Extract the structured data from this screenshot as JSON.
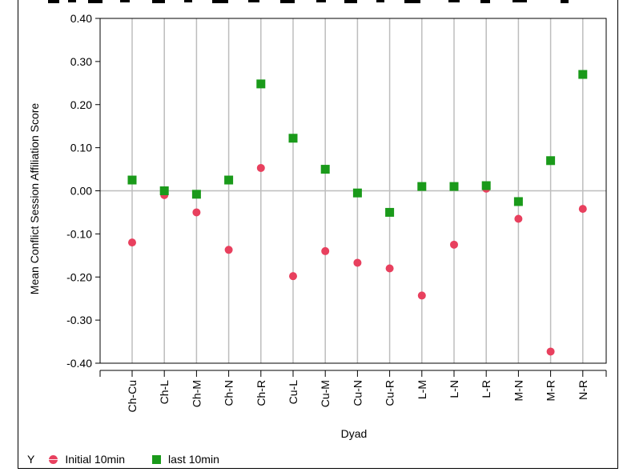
{
  "colors": {
    "series_initial": "#e8405e",
    "series_last": "#1a9a1a",
    "grid": "#bdbdbd",
    "axis": "#000000"
  },
  "legend": {
    "group_label": "Y",
    "position": "bottom-left"
  },
  "chart_data": {
    "type": "scatter",
    "categories": [
      "Ch-Cu",
      "Ch-L",
      "Ch-M",
      "Ch-N",
      "Ch-R",
      "Cu-L",
      "Cu-M",
      "Cu-N",
      "Cu-R",
      "L-M",
      "L-N",
      "L-R",
      "M-N",
      "M-R",
      "N-R"
    ],
    "series": [
      {
        "name": "Initial 10min",
        "marker": "circle",
        "color": "#e8405e",
        "values": [
          -0.12,
          -0.01,
          -0.05,
          -0.137,
          0.053,
          -0.198,
          -0.14,
          -0.167,
          -0.18,
          -0.243,
          -0.125,
          0.005,
          -0.065,
          -0.373,
          -0.042
        ]
      },
      {
        "name": "last 10min",
        "marker": "square",
        "color": "#1a9a1a",
        "values": [
          0.025,
          0.0,
          -0.008,
          0.025,
          0.248,
          0.122,
          0.05,
          -0.005,
          -0.05,
          0.01,
          0.01,
          0.012,
          -0.025,
          0.07,
          0.27
        ]
      }
    ],
    "xlabel": "Dyad",
    "ylabel": "Mean Conflict Session Affiliation Score",
    "ylim": [
      -0.4,
      0.4
    ],
    "yticks": [
      "-0.40",
      "-0.30",
      "-0.20",
      "-0.10",
      "0.00",
      "0.10",
      "0.20",
      "0.30",
      "0.40"
    ],
    "ytick_values": [
      -0.4,
      -0.3,
      -0.2,
      -0.1,
      0.0,
      0.1,
      0.2,
      0.3,
      0.4
    ],
    "grid": true,
    "zero_line": true
  }
}
